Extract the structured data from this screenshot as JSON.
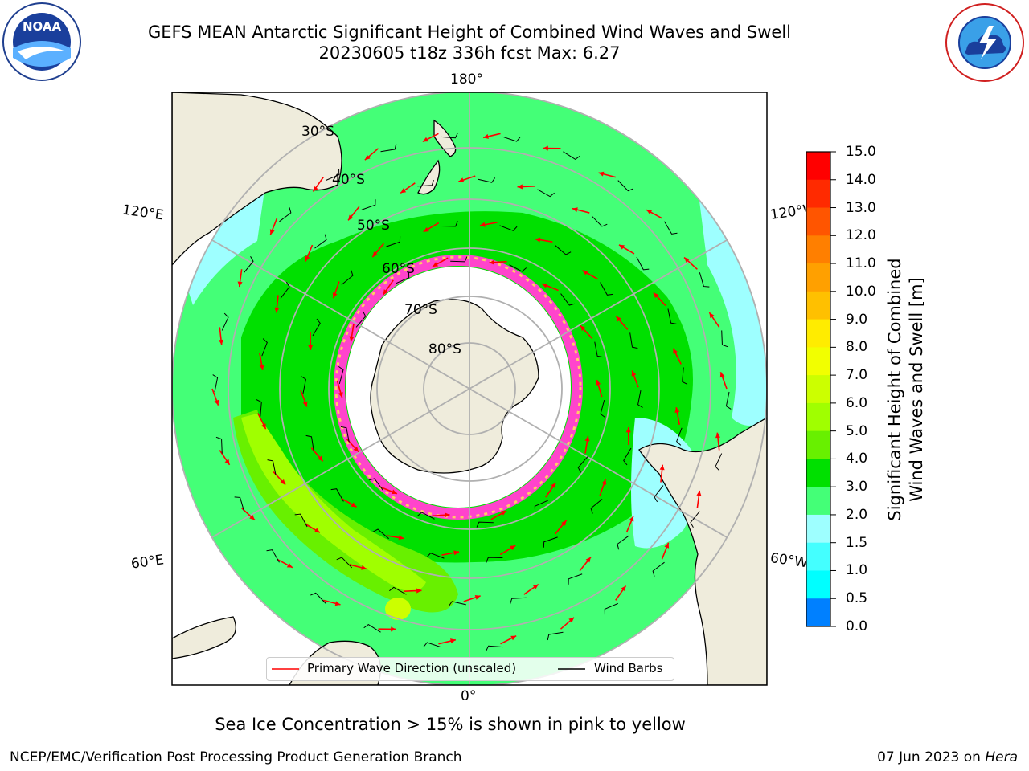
{
  "title_line1": "GEFS MEAN Antarctic Significant Height of Combined Wind Waves and Swell",
  "title_line2": "20230605 t18z 336h fcst   Max: 6.27",
  "logos": {
    "noaa": {
      "text": "NOAA",
      "ring_text": "NATIONAL OCEANIC AND ATMOSPHERIC ADMINISTRATION · U.S. DEPARTMENT OF COMMERCE"
    },
    "nws": {
      "ring_text": "NATIONAL WEATHER SERVICE"
    }
  },
  "map": {
    "projection": "south polar stereographic",
    "longitude_labels": {
      "top": "180°",
      "bottom": "0°",
      "left_upper": "120°E",
      "left_lower": "60°E",
      "right_upper": "120°W",
      "right_lower": "60°W"
    },
    "latitude_labels": [
      "30°S",
      "40°S",
      "50°S",
      "60°S",
      "70°S",
      "80°S"
    ]
  },
  "colorbar": {
    "title_line1": "Significant Height of Combined",
    "title_line2": "Wind Waves and Swell [m]",
    "ticks": [
      "15.0",
      "14.0",
      "13.0",
      "12.0",
      "11.0",
      "10.0",
      "9.0",
      "8.0",
      "7.0",
      "6.0",
      "5.0",
      "4.0",
      "3.0",
      "2.0",
      "1.5",
      "1.0",
      "0.5",
      "0.0"
    ],
    "colors_top_to_bottom": [
      "#ff0000",
      "#ff2a00",
      "#ff5500",
      "#ff7f00",
      "#ffa000",
      "#ffc000",
      "#ffec00",
      "#f2ff00",
      "#ccff00",
      "#a0ff00",
      "#68f000",
      "#00e000",
      "#44ff77",
      "#9effff",
      "#44ffff",
      "#00ffff",
      "#0080ff",
      "#0000ff"
    ]
  },
  "legend": {
    "wave_direction": "Primary Wave Direction (unscaled)",
    "wind_barbs": "Wind Barbs"
  },
  "footer": {
    "note": "Sea Ice Concentration > 15% is shown in pink to yellow",
    "left": "NCEP/EMC/Verification Post Processing Product Generation Branch",
    "date": "07 Jun 2023 on ",
    "machine": "Hera"
  },
  "palette": {
    "land": "#efecdc",
    "ocean_bg": "#ffffff",
    "ice_pink": "#ff44cc",
    "arrow": "#ff0000",
    "barb": "#000000",
    "grid": "#b0b0b0"
  }
}
